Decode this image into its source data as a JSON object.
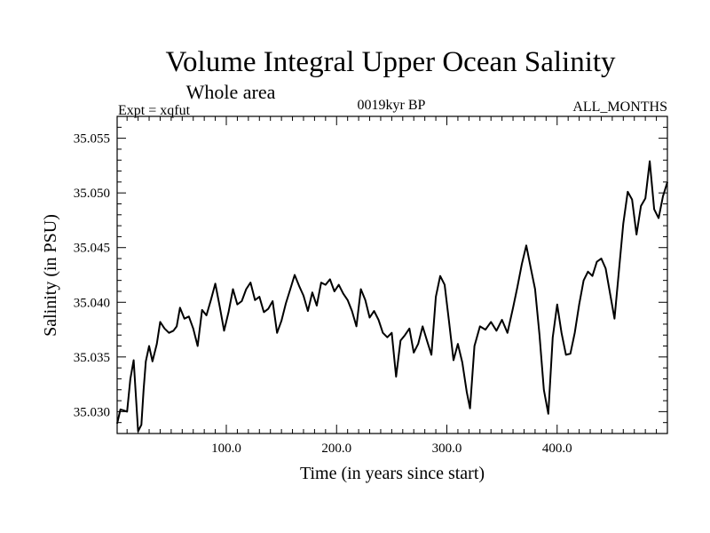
{
  "chart_data": {
    "type": "line",
    "title": "Volume Integral Upper Ocean Salinity",
    "subtitle": "Whole area",
    "experiment_label": "Expt = xqfut",
    "period_label": "0019kyr BP",
    "months_label": "ALL_MONTHS",
    "xlabel": "Time (in years since start)",
    "ylabel": "Salinity (in PSU)",
    "xlim": [
      1,
      500
    ],
    "ylim": [
      35.028,
      35.057
    ],
    "x_ticks": [
      100,
      200,
      300,
      400
    ],
    "x_tick_labels": [
      "100.0",
      "200.0",
      "300.0",
      "400.0"
    ],
    "y_ticks": [
      35.03,
      35.035,
      35.04,
      35.045,
      35.05,
      35.055
    ],
    "y_tick_labels": [
      "35.030",
      "35.035",
      "35.040",
      "35.045",
      "35.050",
      "35.055"
    ],
    "grid": false,
    "series": [
      {
        "name": "Salinity",
        "x": [
          1,
          4,
          7,
          10,
          13,
          16,
          20,
          23,
          25,
          27,
          30,
          33,
          37,
          40,
          44,
          48,
          52,
          55,
          58,
          62,
          66,
          70,
          74,
          78,
          82,
          86,
          90,
          94,
          98,
          102,
          106,
          110,
          114,
          118,
          122,
          126,
          130,
          134,
          138,
          142,
          146,
          150,
          154,
          158,
          162,
          166,
          170,
          174,
          178,
          182,
          186,
          190,
          194,
          198,
          202,
          206,
          210,
          214,
          218,
          222,
          226,
          230,
          234,
          238,
          242,
          246,
          250,
          254,
          258,
          262,
          266,
          270,
          274,
          278,
          282,
          286,
          290,
          294,
          298,
          302,
          306,
          310,
          314,
          318,
          321,
          325,
          330,
          335,
          340,
          345,
          350,
          355,
          360,
          364,
          368,
          372,
          376,
          380,
          384,
          388,
          392,
          396,
          400,
          404,
          408,
          412,
          416,
          420,
          424,
          428,
          432,
          436,
          440,
          444,
          448,
          452,
          456,
          460,
          464,
          468,
          472,
          476,
          480,
          484,
          488,
          492,
          496,
          500
        ],
        "values": [
          35.0289,
          35.0302,
          35.0301,
          35.03,
          35.033,
          35.0347,
          35.0282,
          35.0288,
          35.032,
          35.0346,
          35.036,
          35.0346,
          35.0362,
          35.0382,
          35.0376,
          35.0372,
          35.0374,
          35.0378,
          35.0395,
          35.0385,
          35.0387,
          35.0376,
          35.036,
          35.0393,
          35.0388,
          35.0402,
          35.0417,
          35.0396,
          35.0374,
          35.0391,
          35.0412,
          35.0398,
          35.0401,
          35.0412,
          35.0418,
          35.0402,
          35.0405,
          35.0391,
          35.0394,
          35.0401,
          35.0372,
          35.0383,
          35.0399,
          35.0412,
          35.0425,
          35.0415,
          35.0406,
          35.0392,
          35.0409,
          35.0397,
          35.0418,
          35.0416,
          35.0421,
          35.041,
          35.0416,
          35.0408,
          35.0402,
          35.0392,
          35.0378,
          35.0412,
          35.0402,
          35.0386,
          35.0392,
          35.0384,
          35.0372,
          35.0368,
          35.0372,
          35.0332,
          35.0365,
          35.037,
          35.0376,
          35.0354,
          35.0362,
          35.0378,
          35.0365,
          35.0352,
          35.0405,
          35.0424,
          35.0416,
          35.0382,
          35.0347,
          35.0362,
          35.0345,
          35.0318,
          35.0303,
          35.036,
          35.0378,
          35.0375,
          35.0382,
          35.0374,
          35.0384,
          35.0372,
          35.0395,
          35.0414,
          35.0435,
          35.0452,
          35.0432,
          35.0412,
          35.037,
          35.032,
          35.0298,
          35.0368,
          35.0398,
          35.0372,
          35.0352,
          35.0353,
          35.0372,
          35.0398,
          35.042,
          35.0428,
          35.0424,
          35.0437,
          35.044,
          35.0431,
          35.0408,
          35.0385,
          35.0428,
          35.0472,
          35.0501,
          35.0494,
          35.0462,
          35.0488,
          35.0495,
          35.0529,
          35.0485,
          35.0477,
          35.0497,
          35.051
        ]
      }
    ]
  }
}
